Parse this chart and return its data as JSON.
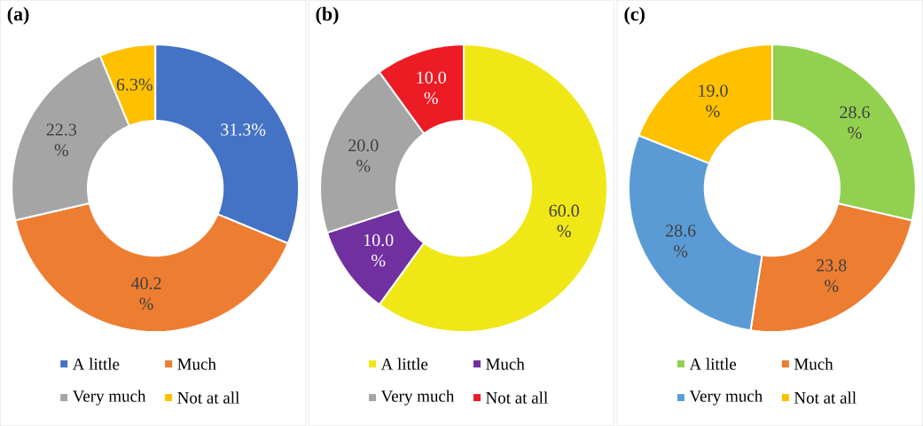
{
  "chart_data": [
    {
      "type": "donut",
      "title": "(a)",
      "categories": [
        "A little",
        "Much",
        "Very much",
        "Not at all"
      ],
      "values": [
        31.3,
        40.2,
        22.3,
        6.3
      ],
      "colors": [
        "#4472c4",
        "#ed7d31",
        "#a5a5a5",
        "#ffc000"
      ],
      "value_labels": [
        "31.3%",
        "40.2 %",
        "22.3 %",
        "6.3%"
      ],
      "legend": "bottom"
    },
    {
      "type": "donut",
      "title": "(b)",
      "categories": [
        "A little",
        "Much",
        "Very much",
        "Not at all"
      ],
      "values": [
        60.0,
        10.0,
        20.0,
        10.0
      ],
      "colors": [
        "#f0e816",
        "#7030a0",
        "#a5a5a5",
        "#ed1c24"
      ],
      "value_labels": [
        "60.0 %",
        "10.0 %",
        "20.0 %",
        "10.0 %"
      ],
      "legend": "bottom"
    },
    {
      "type": "donut",
      "title": "(c)",
      "categories": [
        "A little",
        "Much",
        "Very much",
        "Not at all"
      ],
      "values": [
        28.6,
        23.8,
        28.6,
        19.0
      ],
      "colors": [
        "#92d050",
        "#ed7d31",
        "#5b9bd5",
        "#ffc000"
      ],
      "value_labels": [
        "28.6 %",
        "23.8 %",
        "28.6 %",
        "19.0 %"
      ],
      "legend": "bottom"
    }
  ]
}
